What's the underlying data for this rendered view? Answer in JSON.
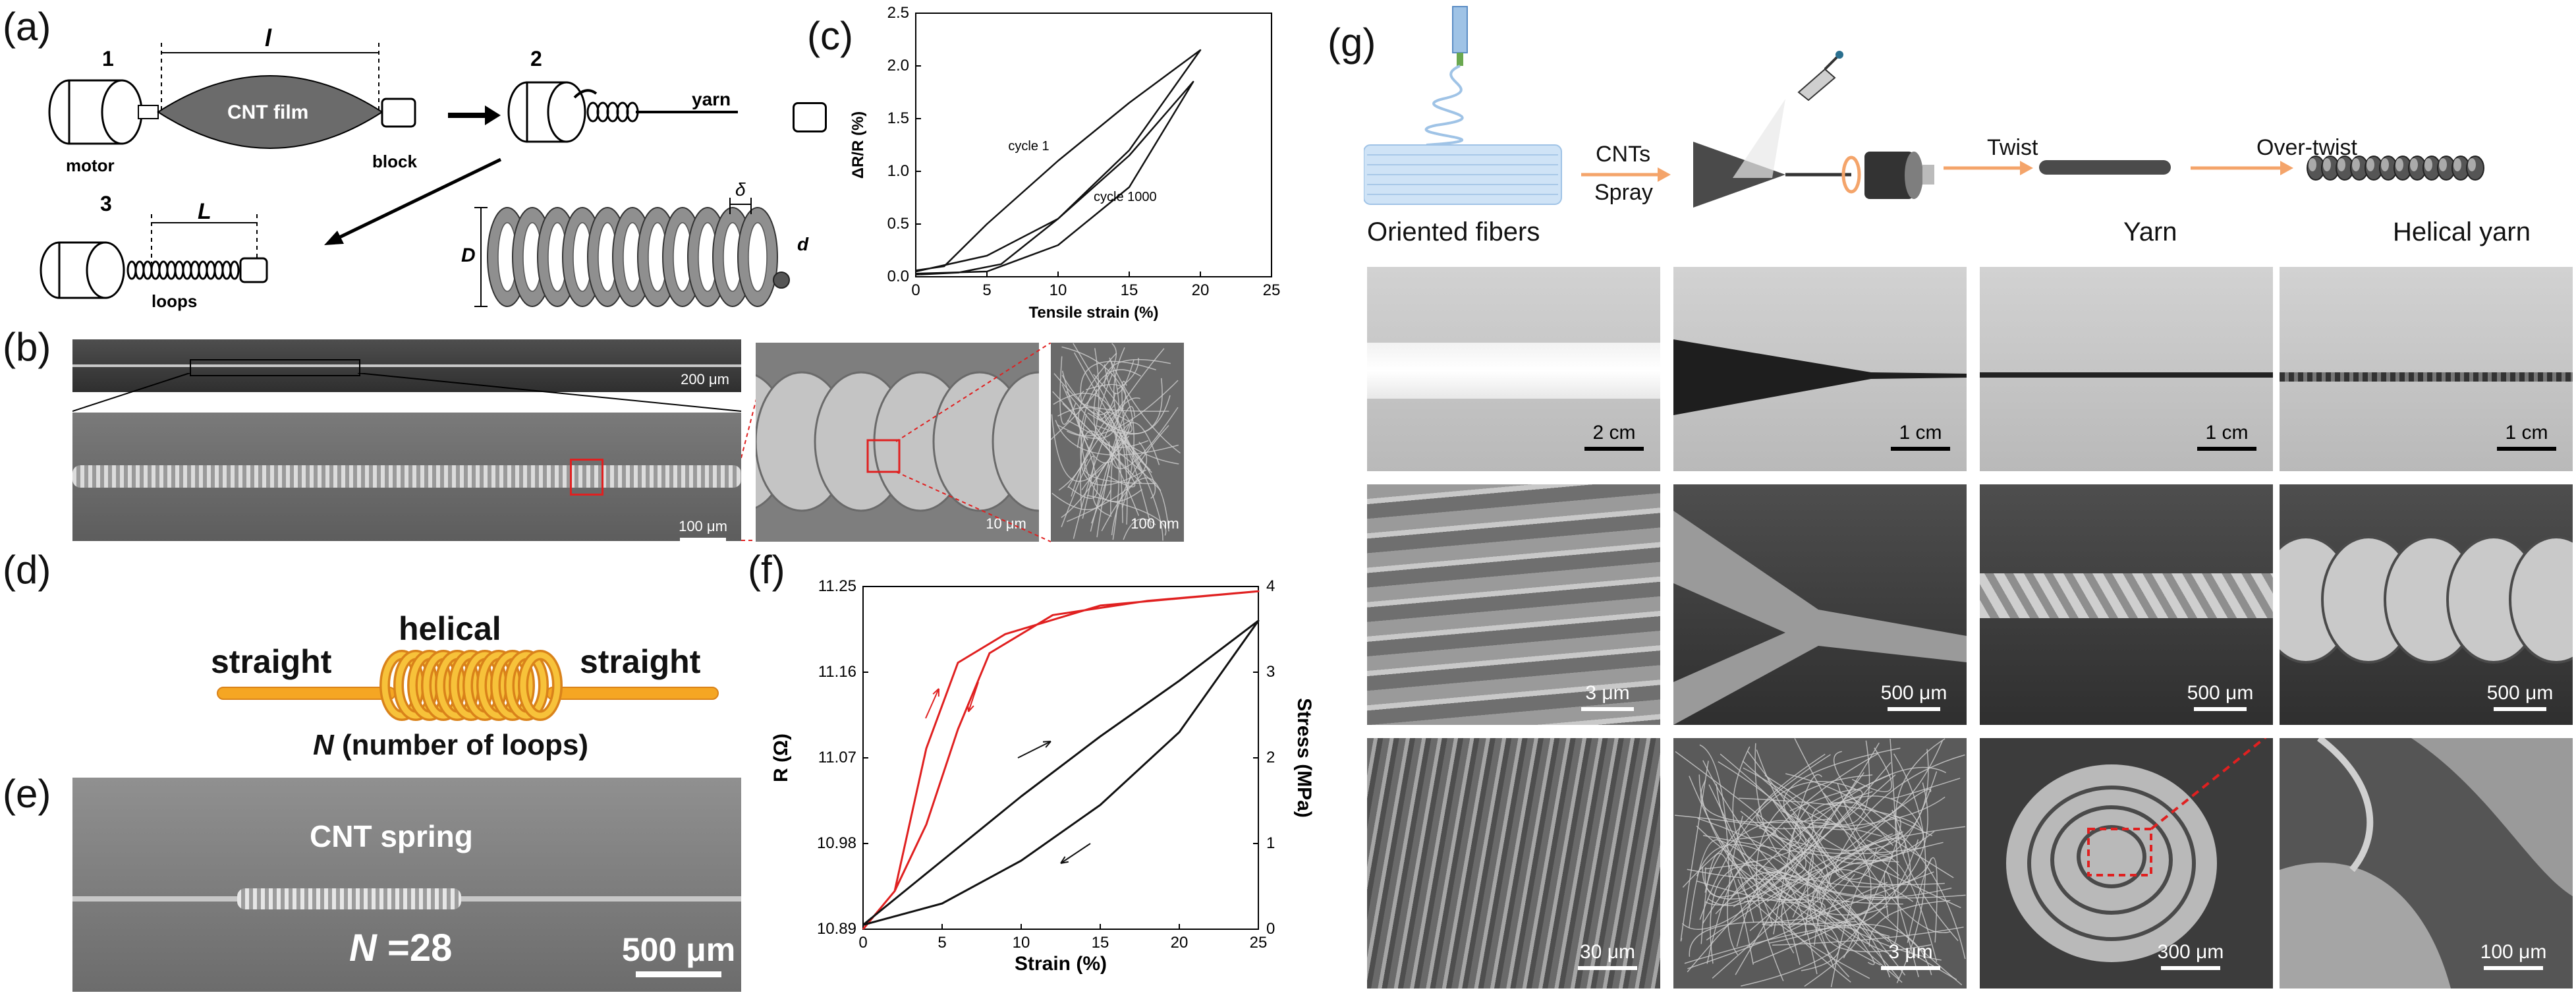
{
  "panels": {
    "a": {
      "label": "(a)",
      "steps": [
        "1",
        "2",
        "3"
      ],
      "length_symbol": "l",
      "film_label": "CNT film",
      "motor_label": "motor",
      "block_label": "block",
      "yarn_label": "yarn",
      "loops_length_symbol": "L",
      "loops_label": "loops",
      "coil_D": "D",
      "coil_d": "d",
      "coil_delta": "δ"
    },
    "b": {
      "label": "(b)",
      "scalebars": [
        "200 μm",
        "100 μm",
        "10 μm",
        "100 nm"
      ]
    },
    "c": {
      "label": "(c)"
    },
    "d": {
      "label": "(d)",
      "left": "straight",
      "middle": "helical",
      "right": "straight",
      "caption_symbol": "N",
      "caption_text": "(number of loops)"
    },
    "e": {
      "label": "(e)",
      "title": "CNT spring",
      "n_symbol": "N",
      "n_value": "=28",
      "scalebar": "500 μm"
    },
    "f": {
      "label": "(f)"
    },
    "g": {
      "label": "(g)",
      "flow_cnts": "CNTs",
      "flow_spray": "Spray",
      "flow_twist": "Twist",
      "flow_overtwist": "Over-twist",
      "stage_names": [
        "Oriented fibers",
        "Yarn",
        "Helical yarn"
      ],
      "row1_scalebars": [
        "2 cm",
        "1 cm",
        "1 cm",
        "1 cm"
      ],
      "row2_scalebars": [
        "3 μm",
        "500 μm",
        "500 μm",
        "500 μm"
      ],
      "row3_scalebars": [
        "30 μm",
        "3 μm",
        "300 μm",
        "100 μm"
      ]
    }
  },
  "chart_data": [
    {
      "panel": "c",
      "type": "line",
      "xlabel": "Tensile strain (%)",
      "ylabel": "ΔR/R (%)",
      "xlim": [
        0,
        25
      ],
      "ylim": [
        0,
        2.5
      ],
      "xticks": [
        0,
        5,
        10,
        15,
        20,
        25
      ],
      "yticks": [
        0.0,
        0.5,
        1.0,
        1.5,
        2.0,
        2.5
      ],
      "annotations": [
        "cycle 1",
        "cycle 1000"
      ],
      "series": [
        {
          "name": "cycle 1",
          "loading": [
            [
              0,
              0.05
            ],
            [
              5,
              0.2
            ],
            [
              10,
              0.55
            ],
            [
              15,
              1.2
            ],
            [
              20,
              2.15
            ]
          ],
          "unloading": [
            [
              20,
              2.15
            ],
            [
              15,
              1.65
            ],
            [
              10,
              1.1
            ],
            [
              5,
              0.5
            ],
            [
              2,
              0.1
            ],
            [
              0,
              0.06
            ]
          ]
        },
        {
          "name": "cycle 1000",
          "loading": [
            [
              0,
              0.03
            ],
            [
              5,
              0.05
            ],
            [
              10,
              0.3
            ],
            [
              15,
              0.85
            ],
            [
              19.5,
              1.85
            ]
          ],
          "unloading": [
            [
              19.5,
              1.85
            ],
            [
              15,
              1.15
            ],
            [
              10,
              0.55
            ],
            [
              6,
              0.12
            ],
            [
              3,
              0.04
            ],
            [
              0,
              0.02
            ]
          ]
        }
      ]
    },
    {
      "panel": "f",
      "type": "line",
      "xlabel": "Strain (%)",
      "ylabel": "R (Ω)",
      "y2label": "Stress (MPa)",
      "xlim": [
        0,
        25
      ],
      "ylim": [
        10.89,
        11.25
      ],
      "y2lim": [
        0,
        4
      ],
      "xticks": [
        0,
        5,
        10,
        15,
        20,
        25
      ],
      "yticks": [
        10.89,
        10.98,
        11.07,
        11.16,
        11.25
      ],
      "y2ticks": [
        0,
        1,
        2,
        3,
        4
      ],
      "series": [
        {
          "axis": "left",
          "color": "#e02020",
          "loading": [
            [
              0,
              10.89
            ],
            [
              2,
              10.93
            ],
            [
              4,
              11.08
            ],
            [
              6,
              11.17
            ],
            [
              9,
              11.2
            ],
            [
              15,
              11.23
            ],
            [
              25,
              11.245
            ]
          ],
          "unloading": [
            [
              25,
              11.245
            ],
            [
              18,
              11.235
            ],
            [
              12,
              11.22
            ],
            [
              8,
              11.18
            ],
            [
              6,
              11.1
            ],
            [
              4,
              11.0
            ],
            [
              2,
              10.93
            ],
            [
              0,
              10.89
            ]
          ]
        },
        {
          "axis": "right",
          "color": "#111111",
          "loading": [
            [
              0,
              0.05
            ],
            [
              5,
              0.8
            ],
            [
              10,
              1.55
            ],
            [
              15,
              2.25
            ],
            [
              20,
              2.9
            ],
            [
              25,
              3.6
            ]
          ],
          "unloading": [
            [
              25,
              3.6
            ],
            [
              20,
              2.3
            ],
            [
              15,
              1.45
            ],
            [
              10,
              0.8
            ],
            [
              5,
              0.3
            ],
            [
              0,
              0.05
            ]
          ]
        }
      ]
    }
  ]
}
